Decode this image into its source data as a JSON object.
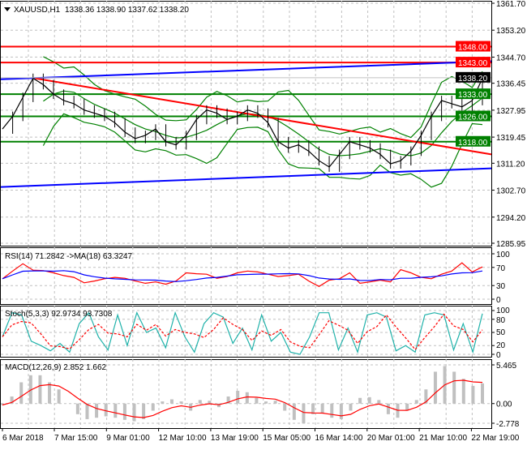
{
  "chart_data": [
    {
      "type": "candlestick-line",
      "title": "XAUUSD,H1",
      "ohlc_label": "1338.36 1338.90 1337.62 1338.20",
      "current_price": "1338.20",
      "ylim": [
        1285.95,
        1361.7
      ],
      "y_ticks": [
        "1361.70",
        "1353.20",
        "1344.70",
        "1336.45",
        "1327.95",
        "1319.45",
        "1311.20",
        "1302.70",
        "1294.20",
        "1285.95"
      ],
      "x_ticks": [
        "6 Mar 2018",
        "7 Mar 15:00",
        "9 Mar 01:00",
        "12 Mar 10:00",
        "13 Mar 19:00",
        "15 Mar 05:00",
        "16 Mar 14:00",
        "20 Mar 01:00",
        "21 Mar 10:00",
        "22 Mar 19:00"
      ],
      "grid": true,
      "closes": [
        1322,
        1326,
        1332,
        1338,
        1336,
        1333,
        1331,
        1330,
        1328,
        1327,
        1326,
        1324,
        1321,
        1319,
        1320,
        1322,
        1318,
        1317,
        1320,
        1325,
        1328,
        1327,
        1325,
        1326,
        1328,
        1327,
        1324,
        1318,
        1316,
        1317,
        1315,
        1312,
        1310,
        1314,
        1318,
        1317,
        1316,
        1314,
        1311,
        1312,
        1315,
        1320,
        1326,
        1331,
        1330,
        1329,
        1331,
        1338
      ],
      "levels": [
        {
          "price": 1348.0,
          "label": "1348.00",
          "color": "#ff0000"
        },
        {
          "price": 1343.0,
          "label": "1343.00",
          "color": "#ff0000"
        },
        {
          "price": 1333.0,
          "label": "1333.00",
          "color": "#008000"
        },
        {
          "price": 1326.0,
          "label": "1326.00",
          "color": "#008000"
        },
        {
          "price": 1318.0,
          "label": "1318.00",
          "color": "#008000"
        }
      ],
      "trendlines": [
        {
          "from": 1337.7,
          "to": 1343.4,
          "start": 0,
          "color": "#0000ff"
        },
        {
          "from": 1303.7,
          "to": 1309.6,
          "start": 0,
          "color": "#0000ff"
        },
        {
          "from": 1338.0,
          "to": 1314.0,
          "start": 0.07,
          "color": "#ff0000"
        }
      ]
    },
    {
      "type": "line",
      "label": "RSI(14) 71.2842  ->MA(18) 63.3247",
      "ylim": [
        0,
        100
      ],
      "y_ticks": [
        "100",
        "70",
        "30",
        "0"
      ],
      "series": [
        {
          "name": "RSI(14)",
          "color": "#ff0000",
          "values": [
            45,
            62,
            78,
            64,
            63,
            58,
            52,
            48,
            36,
            40,
            45,
            48,
            46,
            40,
            35,
            38,
            33,
            40,
            58,
            56,
            55,
            46,
            50,
            58,
            62,
            60,
            55,
            50,
            52,
            55,
            40,
            28,
            42,
            45,
            58,
            35,
            38,
            42,
            38,
            65,
            58,
            48,
            45,
            55,
            62,
            80,
            60,
            71
          ]
        },
        {
          "name": "MA(18)",
          "color": "#0000ff"
        }
      ]
    },
    {
      "type": "line",
      "label": "Stoch(5,3,3) 92.9734 93.7308",
      "ylim": [
        0,
        100
      ],
      "y_ticks": [
        "100",
        "80",
        "50",
        "20",
        "0"
      ],
      "series": [
        {
          "name": "Stoch main",
          "color": "#20b2aa",
          "values": [
            40,
            95,
            90,
            30,
            20,
            8,
            25,
            5,
            70,
            95,
            40,
            10,
            90,
            20,
            95,
            50,
            60,
            15,
            95,
            40,
            5,
            70,
            95,
            85,
            25,
            60,
            10,
            90,
            30,
            50,
            5,
            0,
            40,
            95,
            95,
            10,
            60,
            5,
            90,
            95,
            85,
            8,
            20,
            5,
            90,
            95,
            90,
            10,
            70,
            5,
            93
          ]
        },
        {
          "name": "Stoch signal",
          "color": "#ff0000"
        }
      ]
    },
    {
      "type": "bar+line",
      "label": "MACD(12,26,9) 2.852 1.662",
      "ylim": [
        -2.778,
        5.465
      ],
      "y_ticks": [
        "5.465",
        "0.00",
        "-2.778"
      ],
      "series": [
        {
          "name": "MACD",
          "color": "#c0c0c0",
          "values": [
            -0.2,
            1,
            3,
            4,
            4,
            3,
            2,
            0,
            -1.5,
            -2.2,
            -2,
            -1.8,
            -2,
            -2.3,
            -2.5,
            -2.2,
            -1,
            0.3,
            0.6,
            0.3,
            -1,
            0.5,
            0.4,
            -0.5,
            1,
            1.8,
            1.6,
            0.8,
            0.3,
            0.4,
            -1,
            -2.3,
            -2.8,
            -1.5,
            -1.4,
            -2,
            -2.2,
            -1,
            0.8,
            0.9,
            0.5,
            -1.5,
            -2,
            -1,
            0.5,
            2,
            4.5,
            5.3,
            4.5,
            3.5,
            2.5,
            2.85
          ]
        },
        {
          "name": "Signal",
          "color": "#ff0000"
        }
      ]
    }
  ]
}
